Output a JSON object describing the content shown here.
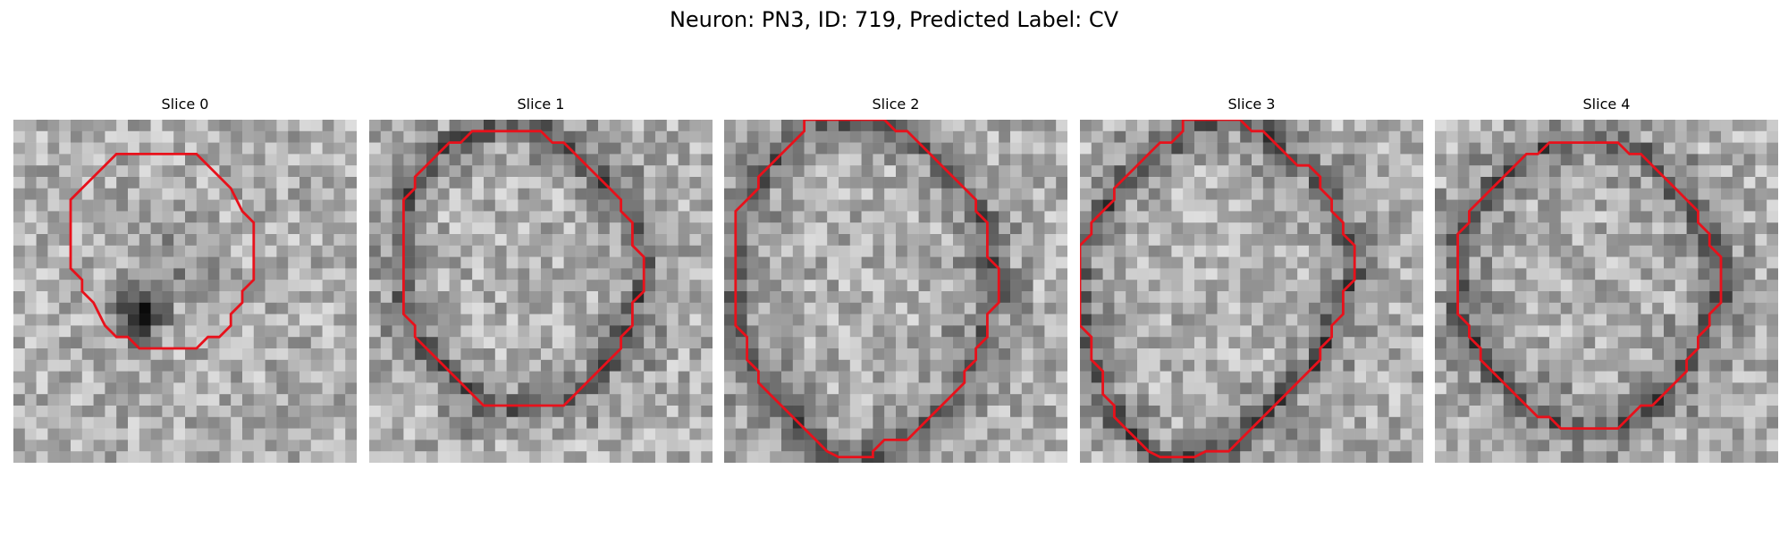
{
  "suptitle": "Neuron: PN3, ID: 719, Predicted Label: CV",
  "slices": [
    {
      "title": "Slice 0",
      "dark_blob": true,
      "contour": [
        [
          10,
          3
        ],
        [
          16,
          3
        ],
        [
          18,
          5
        ],
        [
          19,
          6
        ],
        [
          20,
          8
        ],
        [
          21,
          9
        ],
        [
          21,
          14
        ],
        [
          20,
          15
        ],
        [
          20,
          16
        ],
        [
          19,
          17
        ],
        [
          19,
          18
        ],
        [
          18,
          19
        ],
        [
          17,
          19
        ],
        [
          16,
          20
        ],
        [
          11,
          20
        ],
        [
          10,
          19
        ],
        [
          9,
          19
        ],
        [
          8,
          18
        ],
        [
          7,
          16
        ],
        [
          6,
          15
        ],
        [
          6,
          14
        ],
        [
          5,
          13
        ],
        [
          5,
          7
        ],
        [
          6,
          6
        ],
        [
          7,
          5
        ],
        [
          8,
          4
        ],
        [
          9,
          3
        ]
      ]
    },
    {
      "title": "Slice 1",
      "dark_blob": false,
      "contour": [
        [
          9,
          1
        ],
        [
          15,
          1
        ],
        [
          16,
          2
        ],
        [
          17,
          2
        ],
        [
          18,
          3
        ],
        [
          19,
          4
        ],
        [
          20,
          5
        ],
        [
          21,
          6
        ],
        [
          22,
          7
        ],
        [
          22,
          8
        ],
        [
          23,
          9
        ],
        [
          23,
          10
        ],
        [
          23,
          11
        ],
        [
          24,
          12
        ],
        [
          24,
          15
        ],
        [
          23,
          16
        ],
        [
          23,
          18
        ],
        [
          22,
          19
        ],
        [
          22,
          20
        ],
        [
          21,
          21
        ],
        [
          20,
          22
        ],
        [
          19,
          23
        ],
        [
          18,
          24
        ],
        [
          17,
          25
        ],
        [
          10,
          25
        ],
        [
          9,
          24
        ],
        [
          8,
          23
        ],
        [
          7,
          22
        ],
        [
          6,
          21
        ],
        [
          5,
          20
        ],
        [
          4,
          19
        ],
        [
          4,
          18
        ],
        [
          3,
          17
        ],
        [
          3,
          7
        ],
        [
          4,
          6
        ],
        [
          4,
          5
        ],
        [
          5,
          4
        ],
        [
          6,
          3
        ],
        [
          7,
          2
        ],
        [
          8,
          2
        ]
      ]
    },
    {
      "title": "Slice 2",
      "dark_blob": false,
      "contour": [
        [
          7,
          1
        ],
        [
          7,
          0
        ],
        [
          14,
          0
        ],
        [
          15,
          1
        ],
        [
          16,
          1
        ],
        [
          17,
          2
        ],
        [
          18,
          3
        ],
        [
          19,
          4
        ],
        [
          20,
          5
        ],
        [
          21,
          6
        ],
        [
          22,
          7
        ],
        [
          22,
          8
        ],
        [
          23,
          9
        ],
        [
          23,
          12
        ],
        [
          24,
          13
        ],
        [
          24,
          16
        ],
        [
          23,
          17
        ],
        [
          23,
          19
        ],
        [
          22,
          20
        ],
        [
          22,
          21
        ],
        [
          21,
          22
        ],
        [
          21,
          23
        ],
        [
          20,
          24
        ],
        [
          19,
          25
        ],
        [
          18,
          26
        ],
        [
          17,
          27
        ],
        [
          16,
          28
        ],
        [
          14,
          28
        ],
        [
          13,
          29
        ],
        [
          13,
          29.5
        ],
        [
          10,
          29.5
        ],
        [
          9,
          29
        ],
        [
          8,
          28
        ],
        [
          7,
          27
        ],
        [
          6,
          26
        ],
        [
          5,
          25
        ],
        [
          4,
          24
        ],
        [
          3,
          23
        ],
        [
          3,
          22
        ],
        [
          2,
          21
        ],
        [
          2,
          19
        ],
        [
          1,
          18
        ],
        [
          1,
          8
        ],
        [
          2,
          7
        ],
        [
          3,
          6
        ],
        [
          3,
          5
        ],
        [
          4,
          4
        ],
        [
          5,
          3
        ],
        [
          6,
          2
        ]
      ]
    },
    {
      "title": "Slice 3",
      "dark_blob": false,
      "contour": [
        [
          9,
          1
        ],
        [
          9,
          0
        ],
        [
          14,
          0
        ],
        [
          15,
          1
        ],
        [
          16,
          1
        ],
        [
          17,
          2
        ],
        [
          18,
          3
        ],
        [
          19,
          4
        ],
        [
          20,
          4
        ],
        [
          21,
          5
        ],
        [
          21,
          6
        ],
        [
          22,
          7
        ],
        [
          22,
          8
        ],
        [
          23,
          9
        ],
        [
          23,
          10
        ],
        [
          24,
          11
        ],
        [
          24,
          14
        ],
        [
          23,
          15
        ],
        [
          23,
          17
        ],
        [
          22,
          18
        ],
        [
          22,
          19
        ],
        [
          21,
          20
        ],
        [
          21,
          21
        ],
        [
          20,
          22
        ],
        [
          19,
          23
        ],
        [
          18,
          24
        ],
        [
          17,
          25
        ],
        [
          16,
          26
        ],
        [
          15,
          27
        ],
        [
          14,
          28
        ],
        [
          13,
          29
        ],
        [
          11,
          29
        ],
        [
          10,
          29.5
        ],
        [
          7,
          29.5
        ],
        [
          6,
          29
        ],
        [
          5,
          28
        ],
        [
          4,
          27
        ],
        [
          3,
          26
        ],
        [
          3,
          25
        ],
        [
          2,
          24
        ],
        [
          2,
          22
        ],
        [
          1,
          21
        ],
        [
          1,
          19
        ],
        [
          0,
          18
        ],
        [
          0,
          11
        ],
        [
          1,
          10
        ],
        [
          1,
          9
        ],
        [
          2,
          8
        ],
        [
          3,
          7
        ],
        [
          3,
          6
        ],
        [
          4,
          5
        ],
        [
          5,
          4
        ],
        [
          6,
          3
        ],
        [
          7,
          2
        ],
        [
          8,
          2
        ]
      ]
    },
    {
      "title": "Slice 4",
      "dark_blob": false,
      "contour": [
        [
          11,
          2
        ],
        [
          15,
          2
        ],
        [
          16,
          2
        ],
        [
          17,
          3
        ],
        [
          18,
          3
        ],
        [
          19,
          4
        ],
        [
          20,
          5
        ],
        [
          21,
          6
        ],
        [
          22,
          7
        ],
        [
          23,
          8
        ],
        [
          23,
          9
        ],
        [
          24,
          10
        ],
        [
          24,
          11
        ],
        [
          25,
          12
        ],
        [
          25,
          16
        ],
        [
          24,
          17
        ],
        [
          24,
          18
        ],
        [
          23,
          19
        ],
        [
          23,
          20
        ],
        [
          22,
          21
        ],
        [
          22,
          22
        ],
        [
          21,
          23
        ],
        [
          20,
          24
        ],
        [
          19,
          25
        ],
        [
          18,
          25
        ],
        [
          17,
          26
        ],
        [
          16,
          27
        ],
        [
          11,
          27
        ],
        [
          10,
          26
        ],
        [
          9,
          26
        ],
        [
          8,
          25
        ],
        [
          7,
          24
        ],
        [
          6,
          23
        ],
        [
          5,
          22
        ],
        [
          4,
          21
        ],
        [
          4,
          20
        ],
        [
          3,
          19
        ],
        [
          3,
          18
        ],
        [
          2,
          17
        ],
        [
          2,
          10
        ],
        [
          3,
          9
        ],
        [
          3,
          8
        ],
        [
          4,
          7
        ],
        [
          5,
          6
        ],
        [
          6,
          5
        ],
        [
          7,
          4
        ],
        [
          8,
          3
        ],
        [
          9,
          3
        ],
        [
          10,
          2
        ]
      ]
    }
  ],
  "colors": {
    "contour": "#e8111b"
  }
}
